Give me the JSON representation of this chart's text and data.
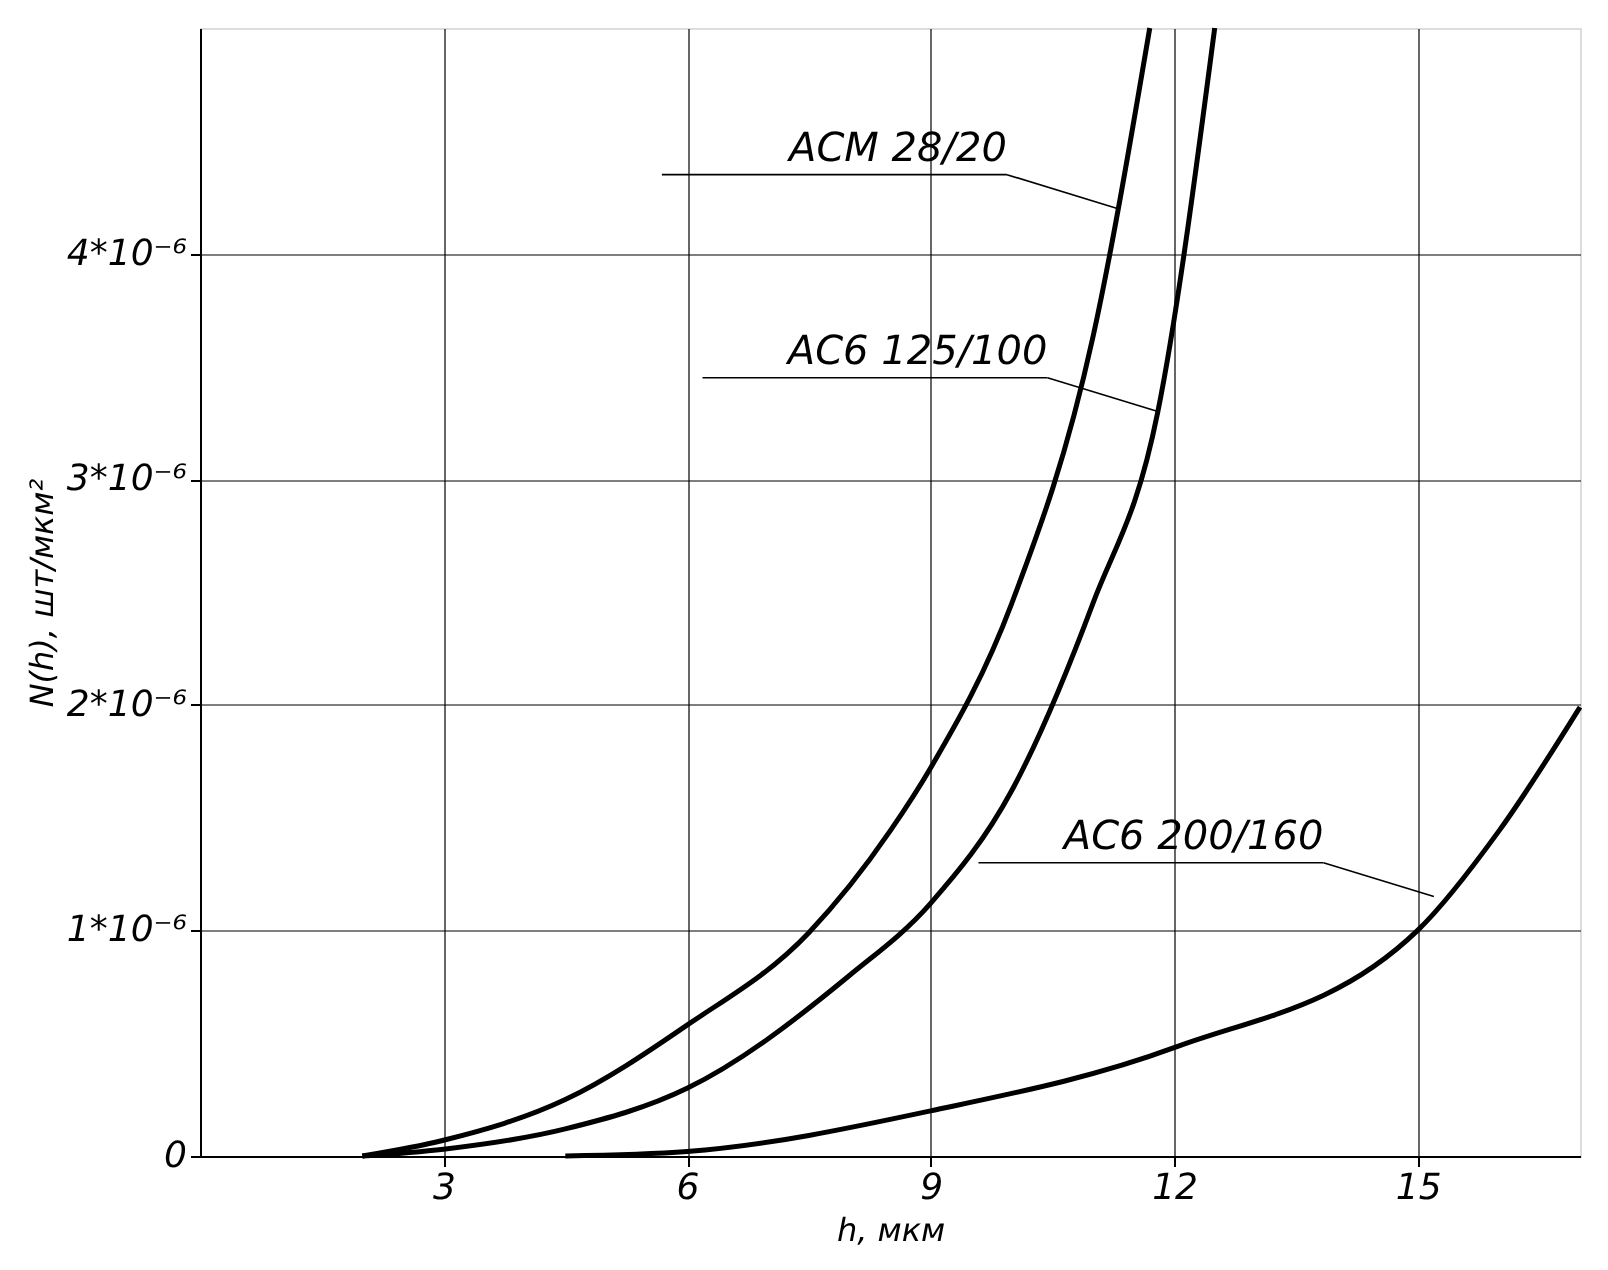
{
  "chart_data": {
    "type": "line",
    "xlabel": "h, мкм",
    "ylabel": "N(h), шт/мкм²",
    "x": [
      2,
      3,
      4.5,
      6,
      7.5,
      8.5,
      9,
      10,
      11,
      11.7
    ],
    "series": [
      {
        "color": "#000000",
        "values": [
          0,
          7e-08,
          2.5e-07,
          5.8e-07,
          9.9e-07,
          1.44e-06,
          1.72e-06,
          2.45e-06,
          3.63e-06,
          5e-06
        ]
      },
      {
        "color": "#000000",
        "x": [
          2,
          3,
          4.5,
          6,
          8,
          9,
          10,
          11,
          11.8,
          12.5
        ],
        "values": [
          0,
          3e-08,
          1.2e-07,
          3e-07,
          8e-07,
          1.12e-06,
          1.62e-06,
          2.45e-06,
          3.3e-06,
          5e-06
        ]
      },
      {
        "color": "#000000",
        "x": [
          4.5,
          6,
          9,
          12,
          15,
          16,
          17
        ],
        "values": [
          0,
          2e-08,
          2e-07,
          4.8e-07,
          1e-06,
          1.44e-06,
          1.99e-06
        ]
      }
    ],
    "xlim": [
      0,
      17
    ],
    "xticks": [
      3,
      6,
      9,
      12,
      15
    ],
    "ylim": [
      0,
      5e-06
    ],
    "yticks": [
      0,
      {
        "value": 1e-06,
        "label": "1*10⁻⁶"
      },
      {
        "value": 2e-06,
        "label": "2*10⁻⁶"
      },
      {
        "value": 3e-06,
        "label": "3*10⁻⁶"
      },
      {
        "value": 4e-06,
        "label": "4*10⁻⁶"
      }
    ],
    "grid": true,
    "marker": "none",
    "line_style": "solid",
    "annotations": [
      {
        "text": "АСМ 28/20",
        "x": 11.3,
        "y": 4.2e-06
      },
      {
        "text": "АС6 125/100",
        "x": 11.8,
        "y": 3.3e-06
      },
      {
        "text": "АС6 200/160",
        "x": 15.2,
        "y": 1.15e-06
      }
    ]
  }
}
